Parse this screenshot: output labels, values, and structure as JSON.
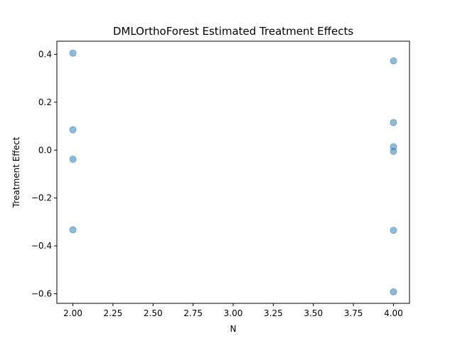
{
  "chart_data": {
    "type": "scatter",
    "title": "DMLOrthoForest Estimated Treatment Effects",
    "xlabel": "N",
    "ylabel": "Treatment Effect",
    "xlim": [
      1.9,
      4.1
    ],
    "ylim": [
      -0.64,
      0.455
    ],
    "xticks": [
      2.0,
      2.25,
      2.5,
      2.75,
      3.0,
      3.25,
      3.5,
      3.75,
      4.0
    ],
    "xtick_labels": [
      "2.00",
      "2.25",
      "2.50",
      "2.75",
      "3.00",
      "3.25",
      "3.50",
      "3.75",
      "4.00"
    ],
    "yticks": [
      -0.6,
      -0.4,
      -0.2,
      0.0,
      0.2,
      0.4
    ],
    "ytick_labels": [
      "−0.6",
      "−0.4",
      "−0.2",
      "0.0",
      "0.2",
      "0.4"
    ],
    "grid": false,
    "legend": "none",
    "marker_color": "#1f77b4",
    "marker_alpha": 0.5,
    "points": [
      {
        "x": 2,
        "y": 0.405
      },
      {
        "x": 2,
        "y": 0.085
      },
      {
        "x": 2,
        "y": -0.038
      },
      {
        "x": 2,
        "y": -0.333
      },
      {
        "x": 4,
        "y": 0.373
      },
      {
        "x": 4,
        "y": 0.115
      },
      {
        "x": 4,
        "y": 0.014
      },
      {
        "x": 4,
        "y": -0.005
      },
      {
        "x": 4,
        "y": -0.335
      },
      {
        "x": 4,
        "y": -0.592
      }
    ]
  }
}
